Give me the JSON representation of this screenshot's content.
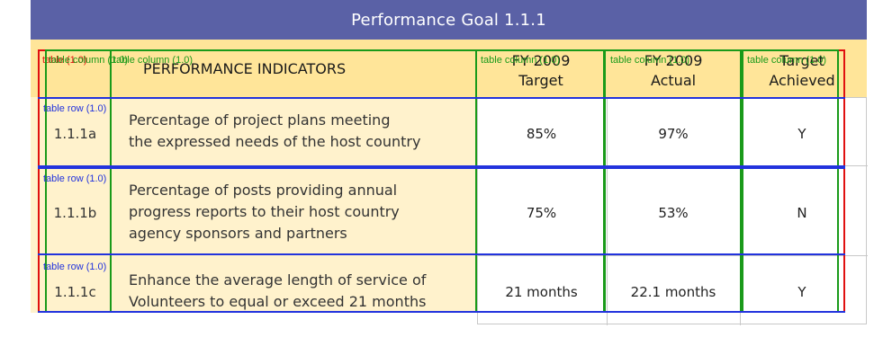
{
  "goal_title": "Performance Goal 1.1.1",
  "table": {
    "headers": {
      "indicators": "PERFORMANCE INDICATORS",
      "target_line1": "FY 2009",
      "target_line2": "Target",
      "actual_line1": "FY 2009",
      "actual_line2": "Actual",
      "achieved_line1": "Target",
      "achieved_line2": "Achieved"
    },
    "rows": [
      {
        "code": "1.1.1a",
        "indicator_lines": [
          "Percentage of project plans meeting",
          "the expressed needs of the host country"
        ],
        "target": "85%",
        "actual": "97%",
        "achieved": "Y"
      },
      {
        "code": "1.1.1b",
        "indicator_lines": [
          "Percentage of posts providing annual",
          "progress reports to their host country",
          "agency sponsors and partners"
        ],
        "target": "75%",
        "actual": "53%",
        "achieved": "N"
      },
      {
        "code": "1.1.1c",
        "indicator_lines": [
          "Enhance the average length of service of",
          "Volunteers to equal or exceed 21 months"
        ],
        "target": "21 months",
        "actual": "22.1 months",
        "achieved": "Y"
      }
    ]
  },
  "annotations": {
    "table_label": "table (1.0)",
    "column_label": "table column (1.0)",
    "row_label": "table row (1.0)"
  },
  "colors": {
    "header_bar": "#5a61a6",
    "header_band": "#ffe599",
    "indicator_bg": "#fff2cc",
    "table_box": "#e01010",
    "column_box": "#1a9a1a",
    "row_box": "#2233dd"
  }
}
